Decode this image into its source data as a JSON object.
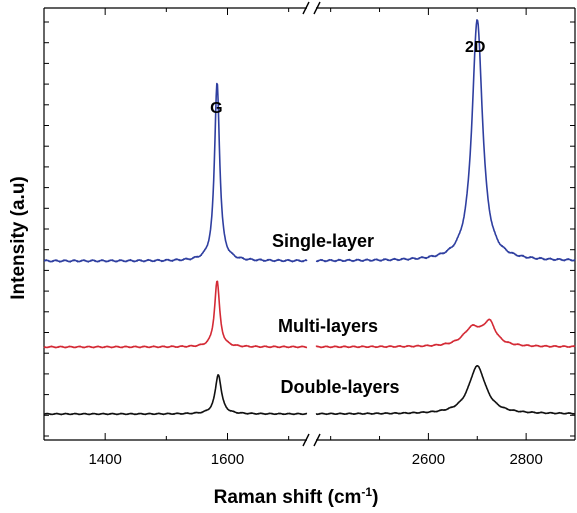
{
  "chart_data": {
    "type": "line",
    "xlabel": "Raman shift (cm-1)",
    "xlabel_parts": {
      "main": "Raman shift (cm",
      "sup": "-1",
      "close": ")"
    },
    "ylabel": "Intensity (a.u)",
    "broken_x_axis": true,
    "x_segments": [
      {
        "range": [
          1300,
          1730
        ],
        "ticks": [
          1400,
          1600
        ]
      },
      {
        "range": [
          2370,
          2900
        ],
        "ticks": [
          2600,
          2800
        ]
      }
    ],
    "grid": false,
    "peak_labels": [
      {
        "text": "G",
        "x": 1585
      },
      {
        "text": "2D",
        "x": 2700
      }
    ],
    "series": [
      {
        "name": "Single-layer",
        "color": "#2f3fa0",
        "baseline": 0.0,
        "peaks": [
          {
            "center": 1583,
            "height": 3.2,
            "width": 10
          },
          {
            "center": 2700,
            "height": 4.3,
            "width": 26
          }
        ]
      },
      {
        "name": "Multi-layers",
        "color": "#d42a35",
        "baseline": 0.0,
        "peaks": [
          {
            "center": 1583,
            "height": 1.65,
            "width": 10
          },
          {
            "center": 2690,
            "height": 0.45,
            "width": 45
          },
          {
            "center": 2725,
            "height": 0.55,
            "width": 30
          }
        ]
      },
      {
        "name": "Double-layers",
        "color": "#111111",
        "baseline": 0.0,
        "peaks": [
          {
            "center": 1585,
            "height": 1.2,
            "width": 12
          },
          {
            "center": 2700,
            "height": 1.45,
            "width": 42
          }
        ]
      }
    ]
  }
}
